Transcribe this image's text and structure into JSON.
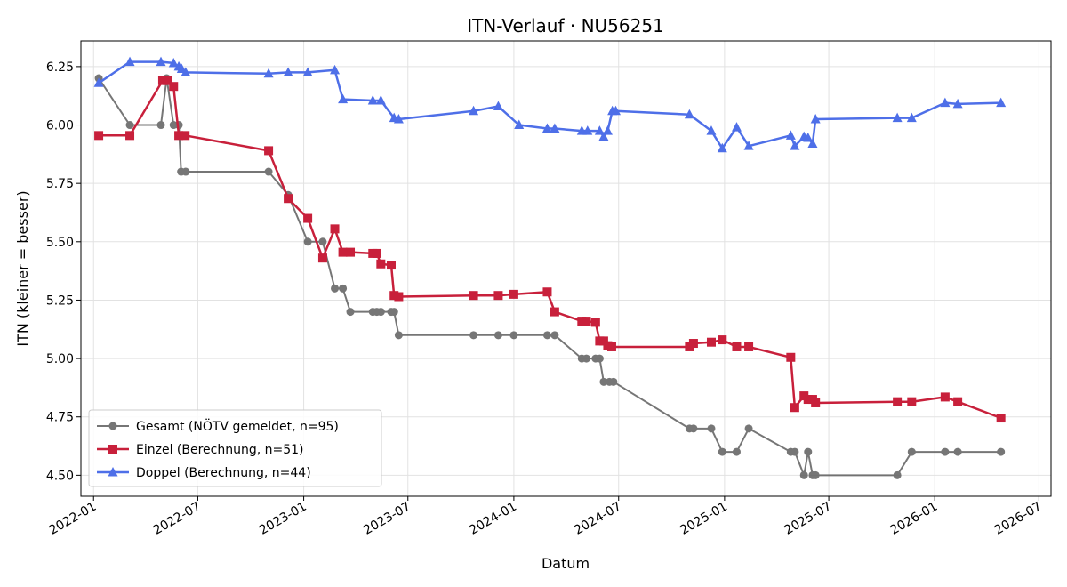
{
  "chart_data": {
    "type": "line",
    "title": "ITN-Verlauf · NU56251",
    "xlabel": "Datum",
    "ylabel": "ITN  (kleiner = besser)",
    "xlim": [
      "2021-12-10",
      "2026-07-22"
    ],
    "ylim": [
      4.41,
      6.36
    ],
    "grid": true,
    "legend_position": "lower-left",
    "x_ticks": [
      "2022-01",
      "2022-07",
      "2023-01",
      "2023-07",
      "2024-01",
      "2024-07",
      "2025-01",
      "2025-07",
      "2026-01",
      "2026-07"
    ],
    "y_ticks": [
      "4.50",
      "4.75",
      "5.00",
      "5.25",
      "5.50",
      "5.75",
      "6.00",
      "6.25"
    ],
    "series": [
      {
        "name": "Gesamt (NÖTV gemeldet, n=95)",
        "color": "#555555",
        "marker": "circle",
        "points": [
          [
            "2022-01-10",
            6.2
          ],
          [
            "2022-03-05",
            6.0
          ],
          [
            "2022-04-28",
            6.0
          ],
          [
            "2022-05-08",
            6.2
          ],
          [
            "2022-05-20",
            6.0
          ],
          [
            "2022-05-29",
            6.0
          ],
          [
            "2022-06-02",
            5.8
          ],
          [
            "2022-06-10",
            5.8
          ],
          [
            "2022-11-01",
            5.8
          ],
          [
            "2022-12-05",
            5.7
          ],
          [
            "2023-01-08",
            5.5
          ],
          [
            "2023-02-03",
            5.5
          ],
          [
            "2023-02-24",
            5.3
          ],
          [
            "2023-03-10",
            5.3
          ],
          [
            "2023-03-23",
            5.2
          ],
          [
            "2023-05-01",
            5.2
          ],
          [
            "2023-05-08",
            5.2
          ],
          [
            "2023-05-15",
            5.2
          ],
          [
            "2023-06-02",
            5.2
          ],
          [
            "2023-06-07",
            5.2
          ],
          [
            "2023-06-15",
            5.1
          ],
          [
            "2023-10-23",
            5.1
          ],
          [
            "2023-12-05",
            5.1
          ],
          [
            "2024-01-01",
            5.1
          ],
          [
            "2024-02-28",
            5.1
          ],
          [
            "2024-03-12",
            5.1
          ],
          [
            "2024-04-28",
            5.0
          ],
          [
            "2024-05-06",
            5.0
          ],
          [
            "2024-05-22",
            5.0
          ],
          [
            "2024-05-29",
            5.0
          ],
          [
            "2024-06-05",
            4.9
          ],
          [
            "2024-06-15",
            4.9
          ],
          [
            "2024-06-22",
            4.9
          ],
          [
            "2024-11-01",
            4.7
          ],
          [
            "2024-11-08",
            4.7
          ],
          [
            "2024-12-09",
            4.7
          ],
          [
            "2024-12-28",
            4.6
          ],
          [
            "2025-01-22",
            4.6
          ],
          [
            "2025-02-12",
            4.7
          ],
          [
            "2025-04-26",
            4.6
          ],
          [
            "2025-05-03",
            4.6
          ],
          [
            "2025-05-19",
            4.5
          ],
          [
            "2025-05-26",
            4.6
          ],
          [
            "2025-06-03",
            4.5
          ],
          [
            "2025-06-08",
            4.5
          ],
          [
            "2025-10-28",
            4.5
          ],
          [
            "2025-11-22",
            4.6
          ],
          [
            "2026-01-19",
            4.6
          ],
          [
            "2026-02-10",
            4.6
          ],
          [
            "2026-04-26",
            4.6
          ]
        ]
      },
      {
        "name": "Einzel (Berechnung, n=51)",
        "color": "#c8203b",
        "marker": "square",
        "points": [
          [
            "2022-01-10",
            5.955
          ],
          [
            "2022-03-05",
            5.955
          ],
          [
            "2022-05-01",
            6.19
          ],
          [
            "2022-05-09",
            6.19
          ],
          [
            "2022-05-20",
            6.165
          ],
          [
            "2022-05-29",
            5.955
          ],
          [
            "2022-06-09",
            5.955
          ],
          [
            "2022-11-01",
            5.89
          ],
          [
            "2022-12-05",
            5.685
          ],
          [
            "2023-01-08",
            5.6
          ],
          [
            "2023-02-03",
            5.43
          ],
          [
            "2023-02-24",
            5.555
          ],
          [
            "2023-03-10",
            5.455
          ],
          [
            "2023-03-23",
            5.455
          ],
          [
            "2023-05-01",
            5.45
          ],
          [
            "2023-05-08",
            5.45
          ],
          [
            "2023-05-15",
            5.405
          ],
          [
            "2023-06-02",
            5.4
          ],
          [
            "2023-06-07",
            5.27
          ],
          [
            "2023-06-15",
            5.265
          ],
          [
            "2023-10-23",
            5.27
          ],
          [
            "2023-12-05",
            5.27
          ],
          [
            "2024-01-01",
            5.275
          ],
          [
            "2024-02-28",
            5.285
          ],
          [
            "2024-03-12",
            5.2
          ],
          [
            "2024-04-28",
            5.16
          ],
          [
            "2024-05-06",
            5.16
          ],
          [
            "2024-05-22",
            5.155
          ],
          [
            "2024-05-29",
            5.075
          ],
          [
            "2024-06-05",
            5.075
          ],
          [
            "2024-06-12",
            5.055
          ],
          [
            "2024-06-19",
            5.05
          ],
          [
            "2024-11-01",
            5.05
          ],
          [
            "2024-11-08",
            5.065
          ],
          [
            "2024-12-09",
            5.07
          ],
          [
            "2024-12-28",
            5.08
          ],
          [
            "2025-01-22",
            5.05
          ],
          [
            "2025-02-12",
            5.05
          ],
          [
            "2025-04-26",
            5.005
          ],
          [
            "2025-05-03",
            4.79
          ],
          [
            "2025-05-19",
            4.84
          ],
          [
            "2025-05-26",
            4.825
          ],
          [
            "2025-06-03",
            4.825
          ],
          [
            "2025-06-08",
            4.81
          ],
          [
            "2025-10-28",
            4.815
          ],
          [
            "2025-11-22",
            4.815
          ],
          [
            "2026-01-19",
            4.835
          ],
          [
            "2026-02-10",
            4.815
          ],
          [
            "2026-04-26",
            4.745
          ]
        ]
      },
      {
        "name": "Doppel (Berechnung, n=44)",
        "color": "#4e6fe8",
        "marker": "triangle",
        "points": [
          [
            "2022-01-10",
            6.18
          ],
          [
            "2022-03-05",
            6.27
          ],
          [
            "2022-04-28",
            6.27
          ],
          [
            "2022-05-20",
            6.265
          ],
          [
            "2022-05-29",
            6.25
          ],
          [
            "2022-06-03",
            6.24
          ],
          [
            "2022-06-10",
            6.225
          ],
          [
            "2022-11-01",
            6.22
          ],
          [
            "2022-12-05",
            6.225
          ],
          [
            "2023-01-08",
            6.225
          ],
          [
            "2023-02-24",
            6.235
          ],
          [
            "2023-03-10",
            6.11
          ],
          [
            "2023-05-01",
            6.105
          ],
          [
            "2023-05-15",
            6.105
          ],
          [
            "2023-06-07",
            6.03
          ],
          [
            "2023-06-15",
            6.025
          ],
          [
            "2023-10-23",
            6.06
          ],
          [
            "2023-12-05",
            6.08
          ],
          [
            "2024-01-10",
            6.0
          ],
          [
            "2024-02-28",
            5.985
          ],
          [
            "2024-03-12",
            5.985
          ],
          [
            "2024-04-28",
            5.975
          ],
          [
            "2024-05-08",
            5.975
          ],
          [
            "2024-05-29",
            5.975
          ],
          [
            "2024-06-05",
            5.95
          ],
          [
            "2024-06-12",
            5.975
          ],
          [
            "2024-06-20",
            6.06
          ],
          [
            "2024-06-26",
            6.06
          ],
          [
            "2024-11-01",
            6.045
          ],
          [
            "2024-12-09",
            5.975
          ],
          [
            "2024-12-28",
            5.9
          ],
          [
            "2025-01-22",
            5.99
          ],
          [
            "2025-02-12",
            5.91
          ],
          [
            "2025-04-26",
            5.955
          ],
          [
            "2025-05-03",
            5.91
          ],
          [
            "2025-05-19",
            5.95
          ],
          [
            "2025-05-26",
            5.945
          ],
          [
            "2025-06-03",
            5.92
          ],
          [
            "2025-06-08",
            6.025
          ],
          [
            "2025-10-28",
            6.03
          ],
          [
            "2025-11-22",
            6.03
          ],
          [
            "2026-01-19",
            6.095
          ],
          [
            "2026-02-10",
            6.09
          ],
          [
            "2026-04-26",
            6.095
          ]
        ]
      }
    ]
  }
}
